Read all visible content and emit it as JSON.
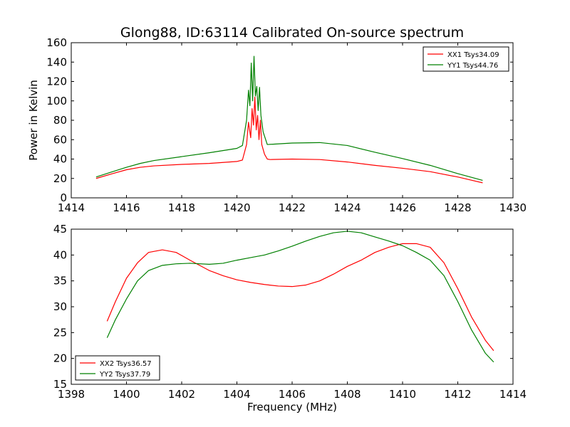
{
  "chart_data": [
    {
      "type": "line",
      "title": "Glong88, ID:63114 Calibrated On-source spectrum",
      "xlabel": "",
      "ylabel": "Power in Kelvin",
      "xlim": [
        1414,
        1430
      ],
      "ylim": [
        0,
        160
      ],
      "xticks": [
        1414,
        1416,
        1418,
        1420,
        1422,
        1424,
        1426,
        1428,
        1430
      ],
      "yticks": [
        0,
        20,
        40,
        60,
        80,
        100,
        120,
        140,
        160
      ],
      "grid": false,
      "legend_position": "top-right",
      "series": [
        {
          "name": "XX1 Tsys34.09",
          "color": "#ff0000",
          "x": [
            1414.9,
            1415.5,
            1416.0,
            1416.5,
            1417.0,
            1418.0,
            1419.0,
            1420.0,
            1420.2,
            1420.35,
            1420.42,
            1420.5,
            1420.55,
            1420.6,
            1420.65,
            1420.7,
            1420.75,
            1420.8,
            1420.85,
            1420.9,
            1421.0,
            1421.1,
            1421.2,
            1422.0,
            1423.0,
            1424.0,
            1425.0,
            1426.0,
            1427.0,
            1428.0,
            1428.9
          ],
          "y": [
            20,
            25,
            29,
            31.5,
            33,
            34.5,
            35.5,
            37.5,
            39,
            55,
            78,
            62,
            92,
            75,
            104,
            70,
            85,
            60,
            80,
            55,
            45,
            40,
            39.5,
            40,
            39.5,
            37,
            33.5,
            30.5,
            27,
            21.5,
            15.5
          ]
        },
        {
          "name": "YY1 Tsys44.76",
          "color": "#008000",
          "x": [
            1414.9,
            1415.5,
            1416.0,
            1416.5,
            1417.0,
            1418.0,
            1419.0,
            1420.0,
            1420.2,
            1420.35,
            1420.42,
            1420.47,
            1420.52,
            1420.57,
            1420.62,
            1420.67,
            1420.72,
            1420.77,
            1420.82,
            1420.87,
            1420.95,
            1421.1,
            1422.0,
            1423.0,
            1424.0,
            1425.0,
            1426.0,
            1427.0,
            1428.0,
            1428.9
          ],
          "y": [
            21.5,
            27,
            31.5,
            35.5,
            38.5,
            42.5,
            46.5,
            51,
            54,
            80,
            111,
            95,
            139,
            100,
            146,
            105,
            115,
            90,
            114,
            85,
            68,
            55,
            56.5,
            57,
            54,
            47,
            40.5,
            33.5,
            25,
            18
          ]
        }
      ]
    },
    {
      "type": "line",
      "title": "",
      "xlabel": "Frequency (MHz)",
      "ylabel": "",
      "xlim": [
        1398,
        1414
      ],
      "ylim": [
        15,
        45
      ],
      "xticks": [
        1398,
        1400,
        1402,
        1404,
        1406,
        1408,
        1410,
        1412,
        1414
      ],
      "yticks": [
        15,
        20,
        25,
        30,
        35,
        40,
        45
      ],
      "grid": false,
      "legend_position": "bottom-left",
      "series": [
        {
          "name": "XX2 Tsys36.57",
          "color": "#ff0000",
          "x": [
            1399.3,
            1399.6,
            1400.0,
            1400.4,
            1400.8,
            1401.3,
            1401.8,
            1402.3,
            1403.0,
            1403.5,
            1404.0,
            1404.5,
            1405.0,
            1405.5,
            1406.0,
            1406.5,
            1407.0,
            1407.5,
            1408.0,
            1408.5,
            1409.0,
            1409.5,
            1410.0,
            1410.5,
            1411.0,
            1411.5,
            1412.0,
            1412.5,
            1413.0,
            1413.3
          ],
          "y": [
            27.2,
            31,
            35.5,
            38.5,
            40.5,
            41,
            40.5,
            39,
            37,
            36,
            35.2,
            34.7,
            34.3,
            34,
            33.9,
            34.2,
            35,
            36.3,
            37.8,
            39,
            40.5,
            41.5,
            42.2,
            42.2,
            41.5,
            38.5,
            33.5,
            28,
            23.5,
            21.5
          ]
        },
        {
          "name": "YY2 Tsys37.79",
          "color": "#008000",
          "x": [
            1399.3,
            1399.6,
            1400.0,
            1400.4,
            1400.8,
            1401.3,
            1401.8,
            1402.3,
            1403.0,
            1403.5,
            1404.0,
            1404.5,
            1405.0,
            1405.5,
            1406.0,
            1406.5,
            1407.0,
            1407.5,
            1408.0,
            1408.5,
            1409.0,
            1409.5,
            1410.0,
            1410.5,
            1411.0,
            1411.5,
            1412.0,
            1412.5,
            1413.0,
            1413.3
          ],
          "y": [
            24,
            27.5,
            31.5,
            35,
            37,
            38,
            38.3,
            38.4,
            38.2,
            38.4,
            39,
            39.5,
            40,
            40.8,
            41.7,
            42.7,
            43.6,
            44.3,
            44.6,
            44.3,
            43.5,
            42.7,
            41.8,
            40.5,
            39,
            36,
            31,
            25.5,
            21,
            19.3
          ]
        }
      ]
    }
  ]
}
